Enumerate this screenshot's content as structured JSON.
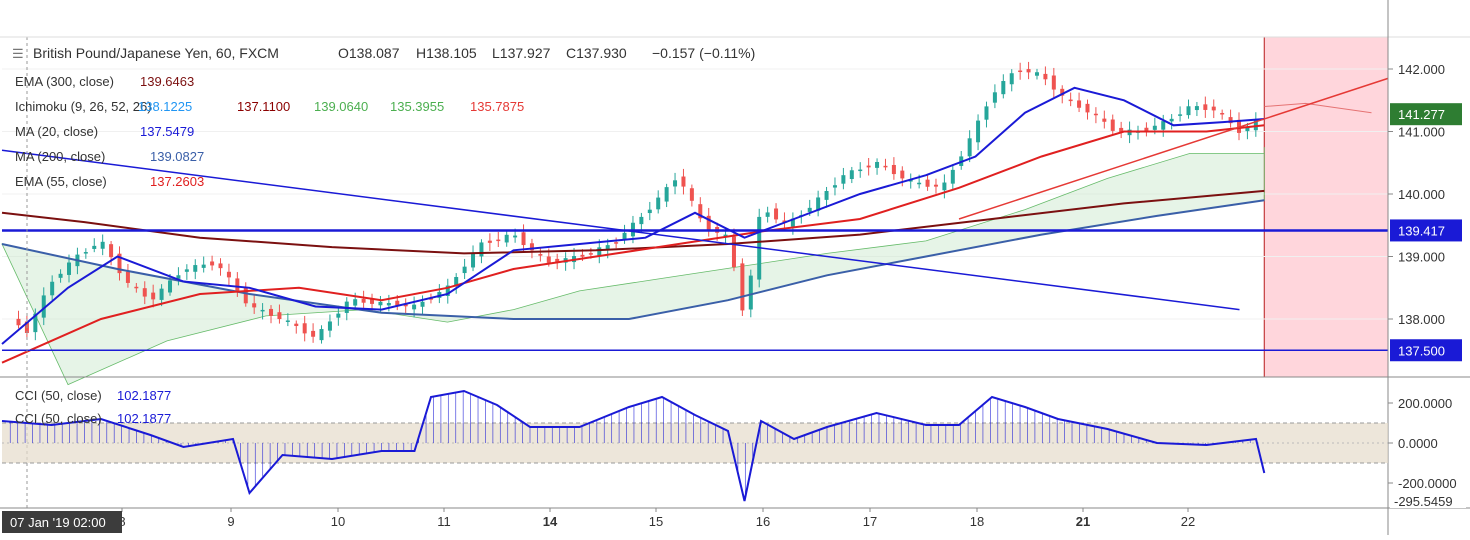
{
  "header": {
    "symbol_icon": "bars-icon",
    "title": "British Pound/Japanese Yen, 60, FXCM",
    "open": "O138.087",
    "high": "H138.105",
    "low": "L137.927",
    "close": "C137.930",
    "change": "−0.157 (−0.11%)"
  },
  "legend": [
    {
      "label": "EMA (300, close)",
      "values": [
        {
          "text": "139.6463",
          "color": "#7b1010"
        }
      ]
    },
    {
      "label": "Ichimoku (9, 26, 52, 26)",
      "values": [
        {
          "text": "138.1225",
          "color": "#2196f3"
        },
        {
          "text": "137.1100",
          "color": "#8b0000"
        },
        {
          "text": "139.0640",
          "color": "#4caf50"
        },
        {
          "text": "135.3955",
          "color": "#4caf50"
        },
        {
          "text": "135.7875",
          "color": "#e53935"
        }
      ]
    },
    {
      "label": "MA (20, close)",
      "values": [
        {
          "text": "137.5479",
          "color": "#1a1ad6"
        }
      ]
    },
    {
      "label": "MA (200, close)",
      "values": [
        {
          "text": "139.0827",
          "color": "#3a5fa8"
        }
      ]
    },
    {
      "label": "EMA (55, close)",
      "values": [
        {
          "text": "137.2603",
          "color": "#e02020"
        }
      ]
    }
  ],
  "lower_legend": [
    {
      "label": "CCI (50, close)",
      "value": "102.1877",
      "color": "#1a1ad6"
    },
    {
      "label": "CCI (50, close)",
      "value": "102.1877",
      "color": "#1a1ad6"
    }
  ],
  "price_axis": {
    "ticks": [
      "142.000",
      "141.000",
      "140.000",
      "139.000",
      "138.000"
    ],
    "markers": [
      {
        "text": "141.277",
        "bg": "#2e7d32"
      },
      {
        "text": "139.417",
        "bg": "#1a1ad6"
      },
      {
        "text": "137.500",
        "bg": "#1a1ad6"
      }
    ]
  },
  "cci_axis": {
    "ticks": [
      "200.0000",
      "0.0000",
      "-200.0000"
    ],
    "cut_label": "-295.5459"
  },
  "time_axis": {
    "cursor_label": "07 Jan '19  02:00",
    "ticks": [
      {
        "text": "8",
        "bold": false
      },
      {
        "text": "9",
        "bold": false
      },
      {
        "text": "10",
        "bold": false
      },
      {
        "text": "11",
        "bold": false
      },
      {
        "text": "14",
        "bold": true
      },
      {
        "text": "15",
        "bold": false
      },
      {
        "text": "16",
        "bold": false
      },
      {
        "text": "17",
        "bold": false
      },
      {
        "text": "18",
        "bold": false
      },
      {
        "text": "21",
        "bold": true
      },
      {
        "text": "22",
        "bold": false
      }
    ]
  },
  "colors": {
    "candle_up": "#26a69a",
    "candle_down": "#ef5350",
    "ma20": "#1a1ad6",
    "ema55": "#e02020",
    "ema300": "#7b1010",
    "ma200": "#3a5fa8",
    "cloud_bull": "#c8e6c9",
    "cloud_bear": "#ffcdd2",
    "cci_band": "#e6dccb",
    "forecast_zone": "#ffd6dc"
  },
  "chart_data": {
    "type": "candlestick",
    "pair": "GBP/JPY",
    "timeframe": "60",
    "last_price": 141.277,
    "horizontal_levels": [
      139.417,
      137.5
    ],
    "ohlc_last": {
      "open": 138.087,
      "high": 138.105,
      "low": 137.927,
      "close": 137.93,
      "change": -0.157,
      "change_pct": -0.11
    },
    "x_ticks": [
      "8",
      "9",
      "10",
      "11",
      "14",
      "15",
      "16",
      "17",
      "18",
      "21",
      "22"
    ],
    "price_path": [
      {
        "x": 0,
        "y": 138.1
      },
      {
        "x": 3,
        "y": 137.8
      },
      {
        "x": 6,
        "y": 138.6
      },
      {
        "x": 9,
        "y": 139.0
      },
      {
        "x": 12,
        "y": 139.25
      },
      {
        "x": 15,
        "y": 138.6
      },
      {
        "x": 18,
        "y": 138.3
      },
      {
        "x": 22,
        "y": 138.8
      },
      {
        "x": 26,
        "y": 138.9
      },
      {
        "x": 30,
        "y": 138.2
      },
      {
        "x": 34,
        "y": 138.0
      },
      {
        "x": 38,
        "y": 137.7
      },
      {
        "x": 42,
        "y": 138.3
      },
      {
        "x": 46,
        "y": 138.25
      },
      {
        "x": 50,
        "y": 138.2
      },
      {
        "x": 54,
        "y": 138.5
      },
      {
        "x": 58,
        "y": 139.2
      },
      {
        "x": 62,
        "y": 139.35
      },
      {
        "x": 66,
        "y": 138.9
      },
      {
        "x": 70,
        "y": 139.0
      },
      {
        "x": 74,
        "y": 139.2
      },
      {
        "x": 78,
        "y": 139.7
      },
      {
        "x": 82,
        "y": 140.3
      },
      {
        "x": 85,
        "y": 139.5
      },
      {
        "x": 88,
        "y": 139.3
      },
      {
        "x": 90,
        "y": 138.0
      },
      {
        "x": 92,
        "y": 139.8
      },
      {
        "x": 95,
        "y": 139.5
      },
      {
        "x": 98,
        "y": 139.8
      },
      {
        "x": 102,
        "y": 140.3
      },
      {
        "x": 106,
        "y": 140.5
      },
      {
        "x": 110,
        "y": 140.2
      },
      {
        "x": 114,
        "y": 140.1
      },
      {
        "x": 117,
        "y": 140.8
      },
      {
        "x": 120,
        "y": 141.6
      },
      {
        "x": 123,
        "y": 142.0
      },
      {
        "x": 126,
        "y": 141.9
      },
      {
        "x": 129,
        "y": 141.5
      },
      {
        "x": 132,
        "y": 141.3
      },
      {
        "x": 135,
        "y": 141.0
      },
      {
        "x": 138,
        "y": 141.0
      },
      {
        "x": 141,
        "y": 141.15
      },
      {
        "x": 144,
        "y": 141.4
      },
      {
        "x": 147,
        "y": 141.35
      },
      {
        "x": 150,
        "y": 141.0
      },
      {
        "x": 153,
        "y": 141.25
      }
    ],
    "ma20_path": [
      [
        0,
        137.6
      ],
      [
        8,
        138.5
      ],
      [
        14,
        139.0
      ],
      [
        22,
        138.6
      ],
      [
        30,
        138.5
      ],
      [
        38,
        138.2
      ],
      [
        46,
        138.15
      ],
      [
        54,
        138.4
      ],
      [
        62,
        139.1
      ],
      [
        70,
        139.2
      ],
      [
        78,
        139.3
      ],
      [
        84,
        139.7
      ],
      [
        90,
        139.3
      ],
      [
        96,
        139.6
      ],
      [
        104,
        140.0
      ],
      [
        112,
        140.3
      ],
      [
        118,
        140.6
      ],
      [
        124,
        141.3
      ],
      [
        130,
        141.7
      ],
      [
        136,
        141.5
      ],
      [
        142,
        141.1
      ],
      [
        148,
        141.15
      ],
      [
        153,
        141.2
      ]
    ],
    "ema55_path": [
      [
        0,
        137.3
      ],
      [
        12,
        138.0
      ],
      [
        24,
        138.4
      ],
      [
        36,
        138.5
      ],
      [
        46,
        138.3
      ],
      [
        54,
        138.5
      ],
      [
        62,
        138.8
      ],
      [
        72,
        139.0
      ],
      [
        82,
        139.2
      ],
      [
        92,
        139.4
      ],
      [
        104,
        139.6
      ],
      [
        116,
        140.1
      ],
      [
        126,
        140.6
      ],
      [
        136,
        141.0
      ],
      [
        146,
        141.0
      ],
      [
        153,
        141.1
      ]
    ],
    "ema300_path": [
      [
        0,
        139.7
      ],
      [
        10,
        139.55
      ],
      [
        24,
        139.3
      ],
      [
        40,
        139.15
      ],
      [
        56,
        139.05
      ],
      [
        72,
        139.1
      ],
      [
        88,
        139.2
      ],
      [
        104,
        139.35
      ],
      [
        120,
        139.6
      ],
      [
        136,
        139.85
      ],
      [
        153,
        140.05
      ]
    ],
    "ma200_path": [
      [
        0,
        139.2
      ],
      [
        14,
        138.8
      ],
      [
        30,
        138.4
      ],
      [
        46,
        138.1
      ],
      [
        62,
        138.0
      ],
      [
        76,
        138.0
      ],
      [
        88,
        138.3
      ],
      [
        100,
        138.7
      ],
      [
        112,
        139.0
      ],
      [
        126,
        139.35
      ],
      [
        140,
        139.65
      ],
      [
        153,
        139.9
      ]
    ],
    "trendline_down": [
      [
        0,
        140.7
      ],
      [
        150,
        138.15
      ]
    ],
    "trendline_up": [
      [
        116,
        139.6
      ],
      [
        168,
        141.85
      ]
    ],
    "cci_path": [
      [
        0,
        110
      ],
      [
        6,
        90
      ],
      [
        12,
        120
      ],
      [
        18,
        40
      ],
      [
        22,
        -20
      ],
      [
        28,
        20
      ],
      [
        30,
        -250
      ],
      [
        34,
        -60
      ],
      [
        40,
        -80
      ],
      [
        46,
        -40
      ],
      [
        50,
        -40
      ],
      [
        52,
        230
      ],
      [
        56,
        260
      ],
      [
        60,
        190
      ],
      [
        64,
        80
      ],
      [
        70,
        80
      ],
      [
        76,
        180
      ],
      [
        80,
        230
      ],
      [
        84,
        140
      ],
      [
        88,
        60
      ],
      [
        90,
        -290
      ],
      [
        92,
        110
      ],
      [
        96,
        20
      ],
      [
        100,
        80
      ],
      [
        106,
        150
      ],
      [
        112,
        90
      ],
      [
        116,
        90
      ],
      [
        120,
        230
      ],
      [
        124,
        180
      ],
      [
        128,
        120
      ],
      [
        134,
        70
      ],
      [
        140,
        0
      ],
      [
        146,
        -10
      ],
      [
        152,
        20
      ],
      [
        153,
        -150
      ]
    ]
  }
}
